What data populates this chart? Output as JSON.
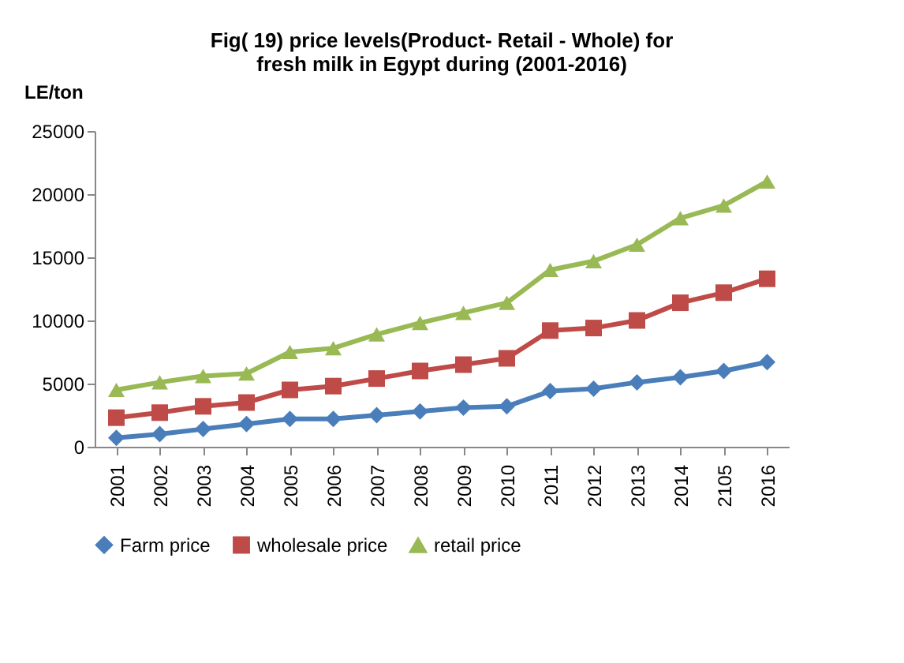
{
  "chart_data": {
    "type": "line",
    "title": [
      "Fig( 19) price levels(Product- Retail - Whole) for",
      "fresh milk in Egypt during (2001-2016)"
    ],
    "ylabel": "LE/ton",
    "categories": [
      "2001",
      "2002",
      "2003",
      "2004",
      "2005",
      "2006",
      "2007",
      "2008",
      "2009",
      "2010",
      "2011",
      "2012",
      "2013",
      "2014",
      "2105",
      "2016"
    ],
    "series": [
      {
        "name": "Farm price",
        "color": "#4a7ebb",
        "marker": "diamond",
        "values": [
          700,
          1000,
          1400,
          1800,
          2200,
          2200,
          2500,
          2800,
          3100,
          3200,
          4400,
          4600,
          5100,
          5500,
          6000,
          6700
        ]
      },
      {
        "name": "wholesale price",
        "color": "#be4b48",
        "marker": "square",
        "values": [
          2300,
          2700,
          3200,
          3500,
          4500,
          4800,
          5400,
          6000,
          6500,
          7000,
          9200,
          9400,
          10000,
          11400,
          12200,
          13300
        ]
      },
      {
        "name": "retail price",
        "color": "#98b954",
        "marker": "triangle",
        "values": [
          4500,
          5100,
          5600,
          5800,
          7500,
          7800,
          8900,
          9800,
          10600,
          11400,
          14000,
          14700,
          16000,
          18100,
          19100,
          21000
        ]
      }
    ],
    "ylim": [
      0,
      25000
    ],
    "yticks": [
      0,
      5000,
      10000,
      15000,
      20000,
      25000
    ],
    "grid": false,
    "legend": "bottom"
  }
}
